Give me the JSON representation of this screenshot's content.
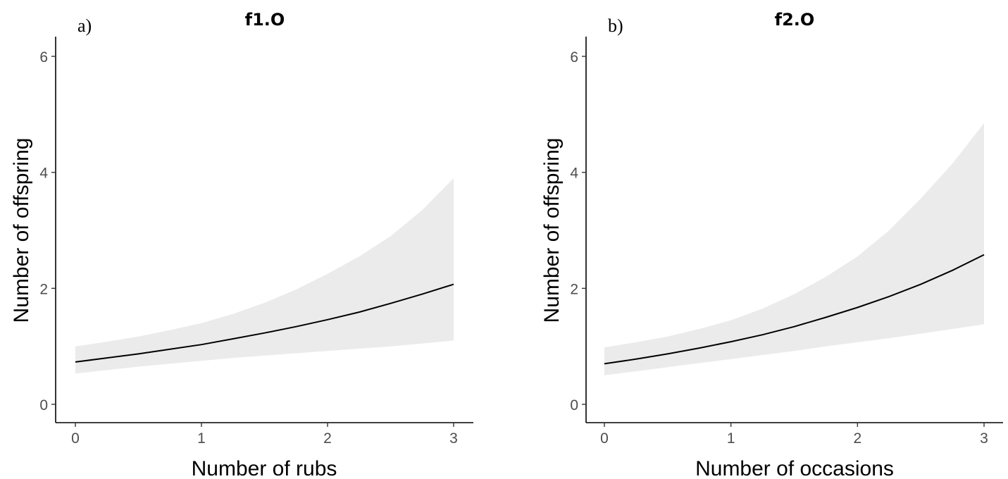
{
  "chart_data": [
    {
      "panel": "a)",
      "type": "line",
      "title": "f1.O",
      "xlabel": "Number of rubs",
      "ylabel": "Number of offspring",
      "xlim": [
        0,
        3
      ],
      "ylim": [
        0,
        6
      ],
      "xticks": [
        0,
        1,
        2,
        3
      ],
      "yticks": [
        0,
        2,
        4,
        6
      ],
      "grid": false,
      "ribbon_color": "#ebebeb",
      "line_color": "#000000",
      "series": [
        {
          "x": [
            0,
            0.25,
            0.5,
            0.75,
            1.0,
            1.25,
            1.5,
            1.75,
            2.0,
            2.25,
            2.5,
            2.75,
            3.0
          ],
          "fit": [
            0.73,
            0.8,
            0.87,
            0.95,
            1.03,
            1.13,
            1.23,
            1.34,
            1.46,
            1.59,
            1.74,
            1.9,
            2.07
          ],
          "lower": [
            0.53,
            0.59,
            0.65,
            0.7,
            0.75,
            0.8,
            0.84,
            0.88,
            0.92,
            0.96,
            1.0,
            1.05,
            1.1
          ],
          "upper": [
            1.0,
            1.08,
            1.17,
            1.28,
            1.4,
            1.56,
            1.75,
            1.98,
            2.25,
            2.55,
            2.9,
            3.35,
            3.9
          ]
        }
      ]
    },
    {
      "panel": "b)",
      "type": "line",
      "title": "f2.O",
      "xlabel": "Number of occasions",
      "ylabel": "Number of offspring",
      "xlim": [
        0,
        3
      ],
      "ylim": [
        0,
        6
      ],
      "xticks": [
        0,
        1,
        2,
        3
      ],
      "yticks": [
        0,
        2,
        4,
        6
      ],
      "grid": false,
      "ribbon_color": "#ebebeb",
      "line_color": "#000000",
      "series": [
        {
          "x": [
            0,
            0.25,
            0.5,
            0.75,
            1.0,
            1.25,
            1.5,
            1.75,
            2.0,
            2.25,
            2.5,
            2.75,
            3.0
          ],
          "fit": [
            0.7,
            0.78,
            0.87,
            0.97,
            1.08,
            1.2,
            1.34,
            1.5,
            1.67,
            1.86,
            2.07,
            2.31,
            2.58
          ],
          "lower": [
            0.5,
            0.57,
            0.64,
            0.71,
            0.78,
            0.85,
            0.92,
            1.0,
            1.07,
            1.14,
            1.22,
            1.3,
            1.38
          ],
          "upper": [
            0.98,
            1.07,
            1.17,
            1.3,
            1.45,
            1.65,
            1.9,
            2.2,
            2.55,
            3.0,
            3.55,
            4.15,
            4.85
          ]
        }
      ]
    }
  ]
}
